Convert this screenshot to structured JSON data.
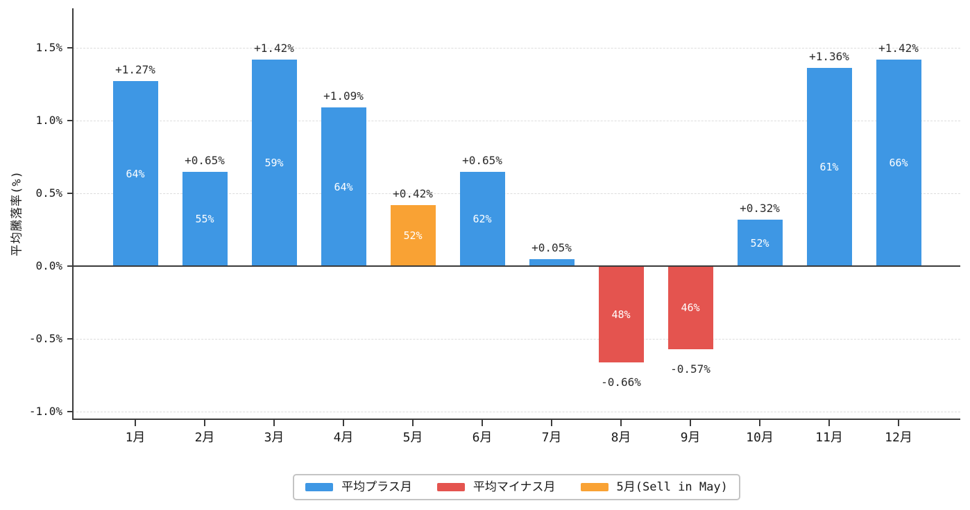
{
  "chart_data": {
    "type": "bar",
    "title": "",
    "xlabel": "",
    "ylabel": "平均騰落率(%)",
    "categories": [
      "1月",
      "2月",
      "3月",
      "4月",
      "5月",
      "6月",
      "7月",
      "8月",
      "9月",
      "10月",
      "11月",
      "12月"
    ],
    "values": [
      1.27,
      0.65,
      1.42,
      1.09,
      0.42,
      0.65,
      0.05,
      -0.66,
      -0.57,
      0.32,
      1.36,
      1.42
    ],
    "value_labels": [
      "+1.27%",
      "+0.65%",
      "+1.42%",
      "+1.09%",
      "+0.42%",
      "+0.65%",
      "+0.05%",
      "-0.66%",
      "-0.57%",
      "+0.32%",
      "+1.36%",
      "+1.42%"
    ],
    "win_rate_labels": [
      "64%",
      "55%",
      "59%",
      "64%",
      "52%",
      "62%",
      "",
      "48%",
      "46%",
      "52%",
      "61%",
      "66%"
    ],
    "bar_color_keys": [
      "plus",
      "plus",
      "plus",
      "plus",
      "may",
      "plus",
      "plus",
      "minus",
      "minus",
      "plus",
      "plus",
      "plus"
    ],
    "ylim": [
      -1.05,
      1.77
    ],
    "yticks": [
      {
        "value": 1.5,
        "label": "1.5%"
      },
      {
        "value": 1.0,
        "label": "1.0%"
      },
      {
        "value": 0.5,
        "label": "0.5%"
      },
      {
        "value": 0.0,
        "label": "0.0%"
      },
      {
        "value": -0.5,
        "label": "-0.5%"
      },
      {
        "value": -1.0,
        "label": "-1.0%"
      }
    ],
    "grid": "horizontal-dashed",
    "zero_line": true,
    "colors": {
      "plus": "#3E97E4",
      "minus": "#E4544F",
      "may": "#F9A234",
      "axis": "#3a3a3a",
      "grid": "#dcdcdc",
      "value_text": "#2b2b2b",
      "inside_text": "#ffffff"
    },
    "legend": {
      "position": "bottom-center",
      "items": [
        {
          "label": "平均プラス月",
          "color": "#3E97E4",
          "key": "plus"
        },
        {
          "label": "平均マイナス月",
          "color": "#E4544F",
          "key": "minus"
        },
        {
          "label": "5月(Sell in May)",
          "color": "#F9A234",
          "key": "may"
        }
      ]
    }
  }
}
